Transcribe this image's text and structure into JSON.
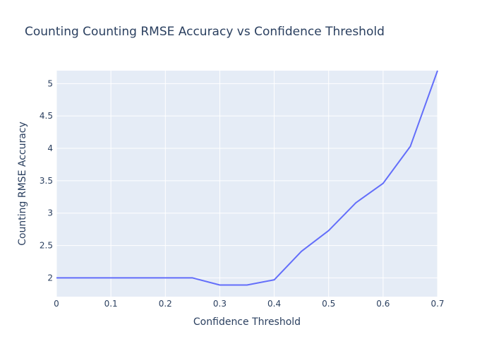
{
  "chart_data": {
    "type": "line",
    "title": "Counting Counting RMSE Accuracy vs Confidence Threshold",
    "xlabel": "Confidence Threshold",
    "ylabel": "Counting RMSE Accuracy",
    "xlim": [
      0,
      0.7
    ],
    "ylim": [
      1.71,
      5.2
    ],
    "x_ticks": [
      0,
      0.1,
      0.2,
      0.3,
      0.4,
      0.5,
      0.6,
      0.7
    ],
    "x_tick_labels": [
      "0",
      "0.1",
      "0.2",
      "0.3",
      "0.4",
      "0.5",
      "0.6",
      "0.7"
    ],
    "y_ticks": [
      2,
      2.5,
      3,
      3.5,
      4,
      4.5,
      5
    ],
    "y_tick_labels": [
      "2",
      "2.5",
      "3",
      "3.5",
      "4",
      "4.5",
      "5"
    ],
    "grid": true,
    "line_color": "#636efa",
    "plot_bg": "#e5ecf6",
    "series": [
      {
        "x": [
          0,
          0.05,
          0.1,
          0.15,
          0.2,
          0.25,
          0.3,
          0.35,
          0.4,
          0.45,
          0.5,
          0.55,
          0.6,
          0.65,
          0.7
        ],
        "y": [
          2.0,
          2.0,
          2.0,
          2.0,
          2.0,
          2.0,
          1.89,
          1.89,
          1.97,
          2.41,
          2.73,
          3.16,
          3.46,
          4.03,
          5.2
        ]
      }
    ]
  }
}
